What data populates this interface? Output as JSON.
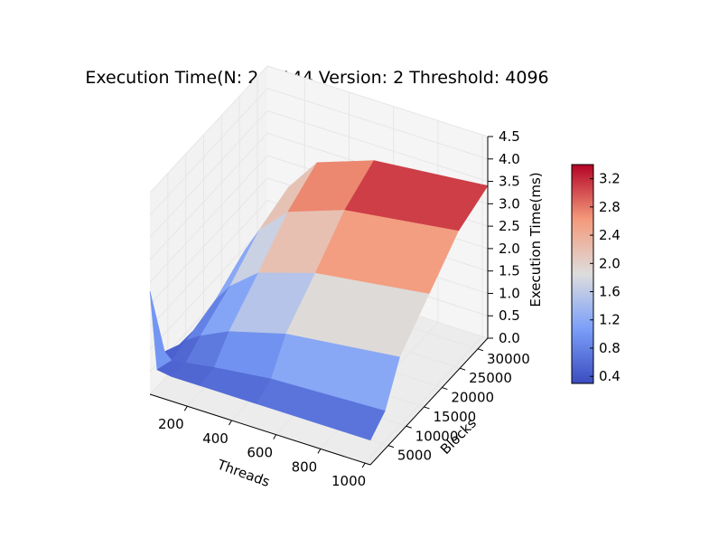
{
  "chart_data": {
    "type": "surface",
    "title": "Execution Time(N: 262144 Version: 2 Threshold: 4096",
    "xlabel": "Threads",
    "ylabel": "Blocks",
    "zlabel": "Execution Time(ms)",
    "x_ticks": [
      "200",
      "400",
      "600",
      "800",
      "1000"
    ],
    "y_ticks": [
      "5000",
      "10000",
      "15000",
      "20000",
      "25000",
      "30000"
    ],
    "z_ticks": [
      "0.0",
      "0.5",
      "1.0",
      "1.5",
      "2.0",
      "2.5",
      "3.0",
      "3.5",
      "4.0",
      "4.5"
    ],
    "xlim": [
      32,
      1024
    ],
    "ylim": [
      1,
      32768
    ],
    "zlim": [
      0,
      4.5
    ],
    "colormap": "coolwarm",
    "colorbar": {
      "ticks": [
        "0.4",
        "0.8",
        "1.2",
        "1.6",
        "2.0",
        "2.4",
        "2.8",
        "3.2"
      ],
      "min": 0.3,
      "max": 3.4
    },
    "x": [
      32,
      64,
      128,
      256,
      512,
      1024
    ],
    "y": [
      1,
      4096,
      8192,
      16384,
      24576,
      32768
    ],
    "z": [
      [
        2.3,
        0.6,
        0.55,
        0.55,
        0.55,
        0.55
      ],
      [
        0.6,
        0.45,
        0.5,
        0.6,
        0.75,
        0.85
      ],
      [
        0.4,
        0.55,
        0.75,
        1.05,
        1.4,
        1.7
      ],
      [
        0.35,
        0.75,
        1.15,
        1.65,
        2.05,
        2.4
      ],
      [
        0.3,
        1.15,
        1.7,
        2.3,
        2.75,
        3.1
      ],
      [
        0.3,
        1.3,
        1.95,
        2.7,
        3.15,
        3.4
      ]
    ],
    "grid": true
  }
}
